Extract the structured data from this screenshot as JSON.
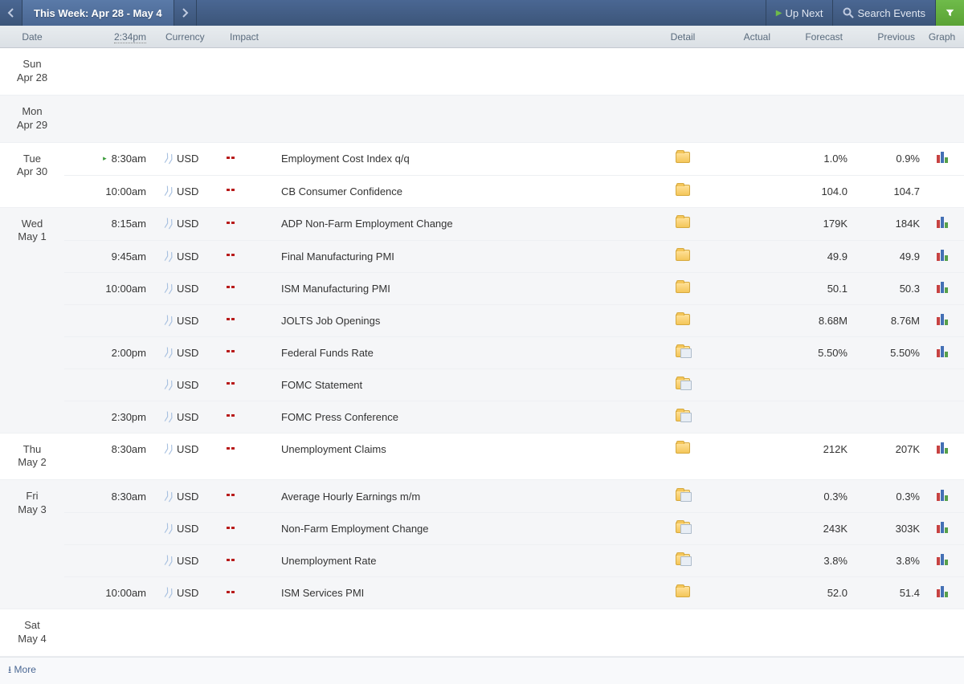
{
  "topbar": {
    "week_label": "This Week: Apr 28 - May 4",
    "up_next": "Up Next",
    "search": "Search Events"
  },
  "headers": {
    "date": "Date",
    "time": "2:34pm",
    "currency": "Currency",
    "impact": "Impact",
    "detail": "Detail",
    "actual": "Actual",
    "forecast": "Forecast",
    "previous": "Previous",
    "graph": "Graph"
  },
  "colors": {
    "topbar_bg": "#3c5579",
    "filter_bg": "#5aa235",
    "impact_high": "#c41c1c",
    "header_bg": "#dbe0e5"
  },
  "days": [
    {
      "dow": "Sun",
      "dom": "Apr 28",
      "alt": false,
      "events": []
    },
    {
      "dow": "Mon",
      "dom": "Apr 29",
      "alt": true,
      "events": []
    },
    {
      "dow": "Tue",
      "dom": "Apr 30",
      "alt": false,
      "events": [
        {
          "time": "8:30am",
          "live": true,
          "currency": "USD",
          "event": "Employment Cost Index q/q",
          "detail": "folder",
          "actual": "",
          "forecast": "1.0%",
          "previous": "0.9%",
          "graph": true
        },
        {
          "time": "10:00am",
          "currency": "USD",
          "event": "CB Consumer Confidence",
          "detail": "folder",
          "actual": "",
          "forecast": "104.0",
          "previous": "104.7",
          "graph": false
        }
      ]
    },
    {
      "dow": "Wed",
      "dom": "May 1",
      "alt": true,
      "events": [
        {
          "time": "8:15am",
          "currency": "USD",
          "event": "ADP Non-Farm Employment Change",
          "detail": "folder",
          "actual": "",
          "forecast": "179K",
          "previous": "184K",
          "graph": true
        },
        {
          "time": "9:45am",
          "currency": "USD",
          "event": "Final Manufacturing PMI",
          "detail": "folder",
          "actual": "",
          "forecast": "49.9",
          "previous": "49.9",
          "graph": true
        },
        {
          "time": "10:00am",
          "currency": "USD",
          "event": "ISM Manufacturing PMI",
          "detail": "folder",
          "actual": "",
          "forecast": "50.1",
          "previous": "50.3",
          "graph": true
        },
        {
          "time": "",
          "currency": "USD",
          "event": "JOLTS Job Openings",
          "detail": "folder",
          "actual": "",
          "forecast": "8.68M",
          "previous": "8.76M",
          "graph": true
        },
        {
          "time": "2:00pm",
          "currency": "USD",
          "event": "Federal Funds Rate",
          "detail": "multi",
          "actual": "",
          "forecast": "5.50%",
          "previous": "5.50%",
          "graph": true
        },
        {
          "time": "",
          "currency": "USD",
          "event": "FOMC Statement",
          "detail": "multi",
          "actual": "",
          "forecast": "",
          "previous": "",
          "graph": false
        },
        {
          "time": "2:30pm",
          "currency": "USD",
          "event": "FOMC Press Conference",
          "detail": "multi",
          "actual": "",
          "forecast": "",
          "previous": "",
          "graph": false
        }
      ]
    },
    {
      "dow": "Thu",
      "dom": "May 2",
      "alt": false,
      "events": [
        {
          "time": "8:30am",
          "currency": "USD",
          "event": "Unemployment Claims",
          "detail": "folder",
          "actual": "",
          "forecast": "212K",
          "previous": "207K",
          "graph": true
        }
      ]
    },
    {
      "dow": "Fri",
      "dom": "May 3",
      "alt": true,
      "events": [
        {
          "time": "8:30am",
          "currency": "USD",
          "event": "Average Hourly Earnings m/m",
          "detail": "multi",
          "actual": "",
          "forecast": "0.3%",
          "previous": "0.3%",
          "graph": true
        },
        {
          "time": "",
          "currency": "USD",
          "event": "Non-Farm Employment Change",
          "detail": "multi",
          "actual": "",
          "forecast": "243K",
          "previous": "303K",
          "graph": true
        },
        {
          "time": "",
          "currency": "USD",
          "event": "Unemployment Rate",
          "detail": "multi",
          "actual": "",
          "forecast": "3.8%",
          "previous": "3.8%",
          "graph": true
        },
        {
          "time": "10:00am",
          "currency": "USD",
          "event": "ISM Services PMI",
          "detail": "folder",
          "actual": "",
          "forecast": "52.0",
          "previous": "51.4",
          "graph": true
        }
      ]
    },
    {
      "dow": "Sat",
      "dom": "May 4",
      "alt": false,
      "events": []
    }
  ],
  "footer": {
    "more": "More"
  }
}
